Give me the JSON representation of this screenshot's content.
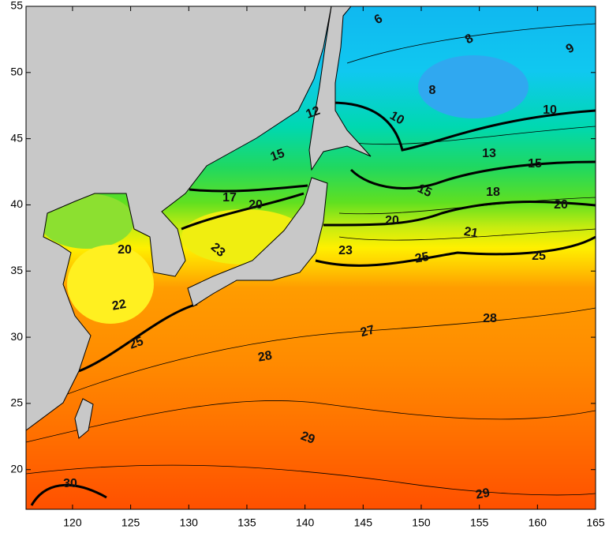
{
  "map": {
    "xlim": [
      116,
      165
    ],
    "ylim": [
      17,
      55
    ],
    "xticks": [
      120,
      125,
      130,
      135,
      140,
      145,
      150,
      155,
      160,
      165
    ],
    "yticks": [
      20,
      25,
      30,
      35,
      40,
      45,
      50,
      55
    ],
    "contour_labels": [
      "6",
      "8",
      "9",
      "8",
      "10",
      "10",
      "12",
      "15",
      "13",
      "15",
      "17",
      "20",
      "15",
      "18",
      "20",
      "20",
      "21",
      "23",
      "20",
      "23",
      "25",
      "25",
      "22",
      "28",
      "27",
      "25",
      "28",
      "29",
      "30",
      "29"
    ]
  }
}
